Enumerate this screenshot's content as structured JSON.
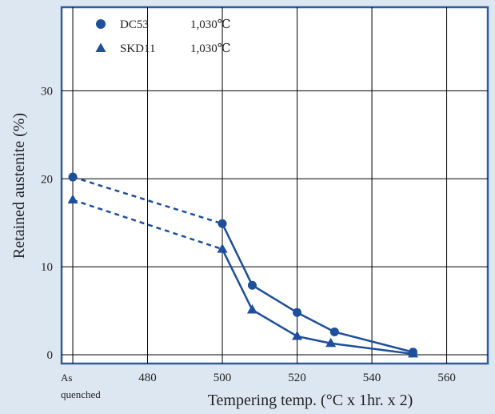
{
  "colors": {
    "background": "#dde7f1",
    "frame": "#2e5e9e",
    "series": "#1e4f9c",
    "grid": "#000000",
    "plot": "#ffffff"
  },
  "chart_data": {
    "type": "line",
    "xlabel": "Tempering temp. (°C x 1hr. x 2)",
    "ylabel": "Retained austenite (%)",
    "x_ticks": [
      "As quenched",
      "480",
      "500",
      "520",
      "540",
      "560"
    ],
    "x_tick_values": [
      460,
      480,
      500,
      520,
      540,
      560
    ],
    "y_ticks": [
      "0",
      "10",
      "20",
      "30"
    ],
    "y_tick_values": [
      0,
      10,
      20,
      30
    ],
    "xlim": [
      457,
      571
    ],
    "ylim": [
      -1,
      39.5
    ],
    "grid": true,
    "legend_position": "top-left",
    "series": [
      {
        "name": "DC53",
        "condition": "1,030℃",
        "marker": "circle",
        "dashed_points": [
          [
            460,
            20.2
          ],
          [
            500,
            14.9
          ]
        ],
        "x": [
          500,
          508,
          520,
          530,
          551
        ],
        "y": [
          14.9,
          7.9,
          4.8,
          2.6,
          0.3
        ]
      },
      {
        "name": "SKD11",
        "condition": "1,030℃",
        "marker": "triangle",
        "dashed_points": [
          [
            460,
            17.6
          ],
          [
            500,
            12.0
          ]
        ],
        "x": [
          500,
          508,
          520,
          529,
          551
        ],
        "y": [
          12.0,
          5.1,
          2.1,
          1.3,
          0.1
        ]
      }
    ]
  }
}
